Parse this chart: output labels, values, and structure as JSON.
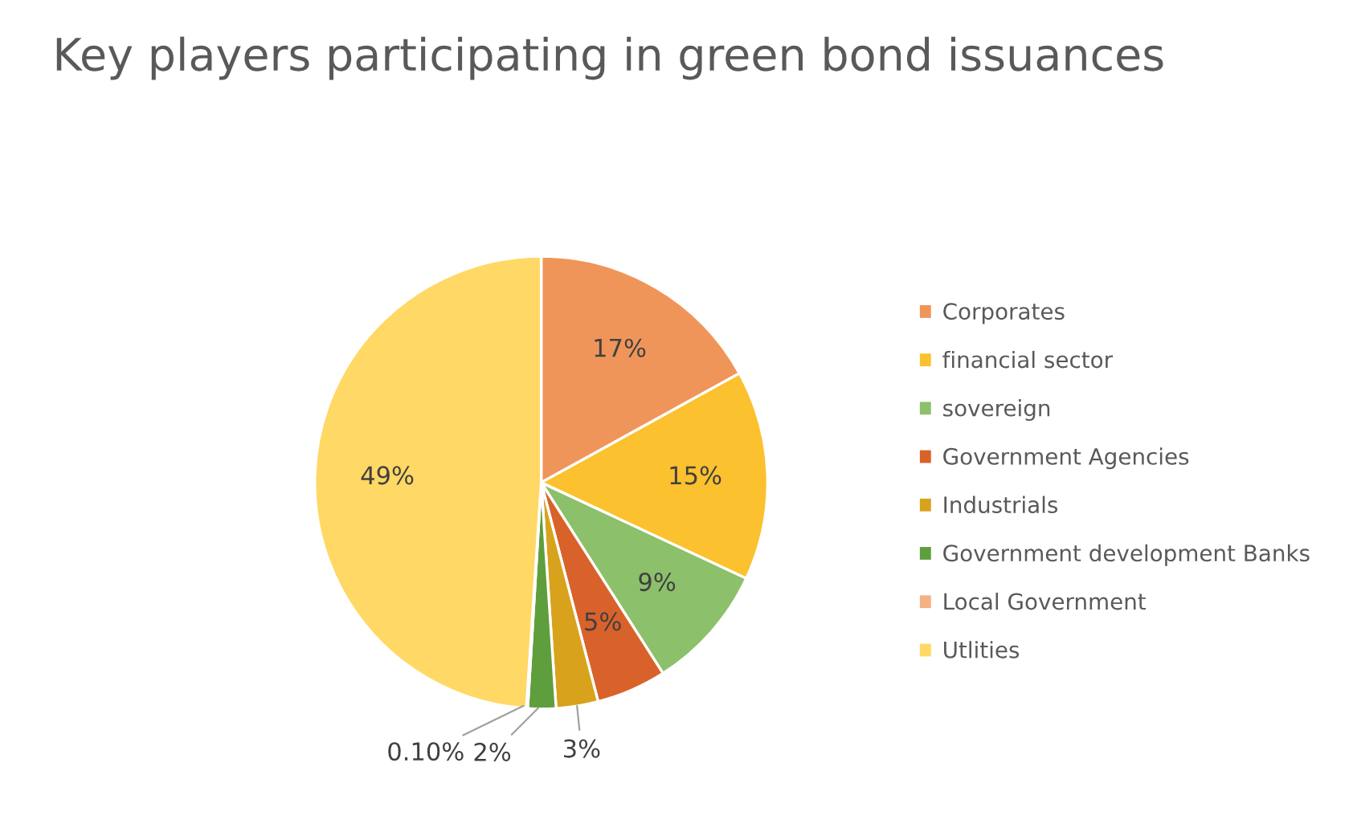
{
  "chart_data": {
    "type": "pie",
    "title": "Key players participating in green bond issuances",
    "categories": [
      "Corporates",
      "financial sector",
      "sovereign",
      "Government Agencies",
      "Industrials",
      "Government development Banks",
      "Local Government",
      "Utlities"
    ],
    "values": [
      17,
      15,
      9,
      5,
      3,
      2,
      0.1,
      49
    ],
    "value_labels": [
      "17%",
      "15%",
      "9%",
      "5%",
      "3%",
      "2%",
      "0.10%",
      "49%"
    ],
    "colors": [
      "#f0955a",
      "#fbc12e",
      "#8cc06a",
      "#d9622b",
      "#d8a21c",
      "#5f9e3c",
      "#f4b183",
      "#ffd865"
    ],
    "legend": "right"
  }
}
